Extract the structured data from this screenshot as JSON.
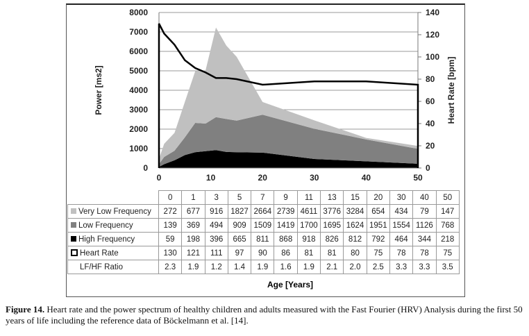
{
  "chart_data": {
    "type": "area",
    "title": "",
    "x": [
      0,
      1,
      3,
      5,
      7,
      9,
      11,
      13,
      15,
      20,
      30,
      40,
      50
    ],
    "xlabel": "Age [Years]",
    "ylabel": "Power [ms2]",
    "y2label": "Heart Rate [bpm]",
    "xlim": [
      0,
      50
    ],
    "ylim": [
      0,
      8000
    ],
    "y2lim": [
      0,
      140
    ],
    "xticks": [
      0,
      10,
      20,
      30,
      40,
      50
    ],
    "yticks": [
      0,
      1000,
      2000,
      3000,
      4000,
      5000,
      6000,
      7000,
      8000
    ],
    "y2ticks": [
      0,
      20,
      40,
      60,
      80,
      100,
      120,
      140
    ],
    "stacked": true,
    "series": [
      {
        "name": "High Frequency",
        "color": "#000000",
        "values": [
          59,
          198,
          396,
          665,
          811,
          868,
          918,
          826,
          812,
          792,
          464,
          344,
          218
        ]
      },
      {
        "name": "Low Frequency",
        "color": "#808080",
        "values": [
          139,
          369,
          494,
          909,
          1509,
          1419,
          1700,
          1695,
          1624,
          1951,
          1554,
          1126,
          768
        ]
      },
      {
        "name": "Very Low Frequency",
        "color": "#c0c0c0",
        "values": [
          272,
          677,
          916,
          1827,
          2664,
          2739,
          4611,
          3776,
          3284,
          654,
          434,
          79,
          147
        ]
      },
      {
        "name": "Heart Rate",
        "type": "line",
        "axis": "right",
        "color": "#000000",
        "values": [
          130,
          121,
          111,
          97,
          90,
          86,
          81,
          81,
          80,
          75,
          78,
          78,
          75
        ]
      }
    ],
    "table": {
      "header": [
        "0",
        "1",
        "3",
        "5",
        "7",
        "9",
        "11",
        "13",
        "15",
        "20",
        "30",
        "40",
        "50"
      ],
      "rows": [
        {
          "label": "Very Low Frequency",
          "swatch": "#c0c0c0",
          "values": [
            "272",
            "677",
            "916",
            "1827",
            "2664",
            "2739",
            "4611",
            "3776",
            "3284",
            "654",
            "434",
            "79",
            "147"
          ]
        },
        {
          "label": "Low Frequency",
          "swatch": "#808080",
          "values": [
            "139",
            "369",
            "494",
            "909",
            "1509",
            "1419",
            "1700",
            "1695",
            "1624",
            "1951",
            "1554",
            "1126",
            "768"
          ]
        },
        {
          "label": "High Frequency",
          "swatch": "#000000",
          "values": [
            "59",
            "198",
            "396",
            "665",
            "811",
            "868",
            "918",
            "826",
            "812",
            "792",
            "464",
            "344",
            "218"
          ]
        },
        {
          "label": "Heart Rate",
          "swatch": "outline",
          "values": [
            "130",
            "121",
            "111",
            "97",
            "90",
            "86",
            "81",
            "81",
            "80",
            "75",
            "78",
            "78",
            "75"
          ]
        },
        {
          "label": "LF/HF Ratio",
          "swatch": "",
          "values": [
            "2.3",
            "1.9",
            "1.2",
            "1.4",
            "1.9",
            "1.6",
            "1.9",
            "2.1",
            "2.0",
            "2.5",
            "3.3",
            "3.3",
            "3.5"
          ]
        }
      ]
    }
  },
  "caption": {
    "label": "Figure 14.",
    "text": " Heart rate and the power spectrum of healthy children and adults measured with the Fast Fourier (HRV) Analysis during the first 50 years of life including the reference data of Böckelmann et al. [14]."
  }
}
